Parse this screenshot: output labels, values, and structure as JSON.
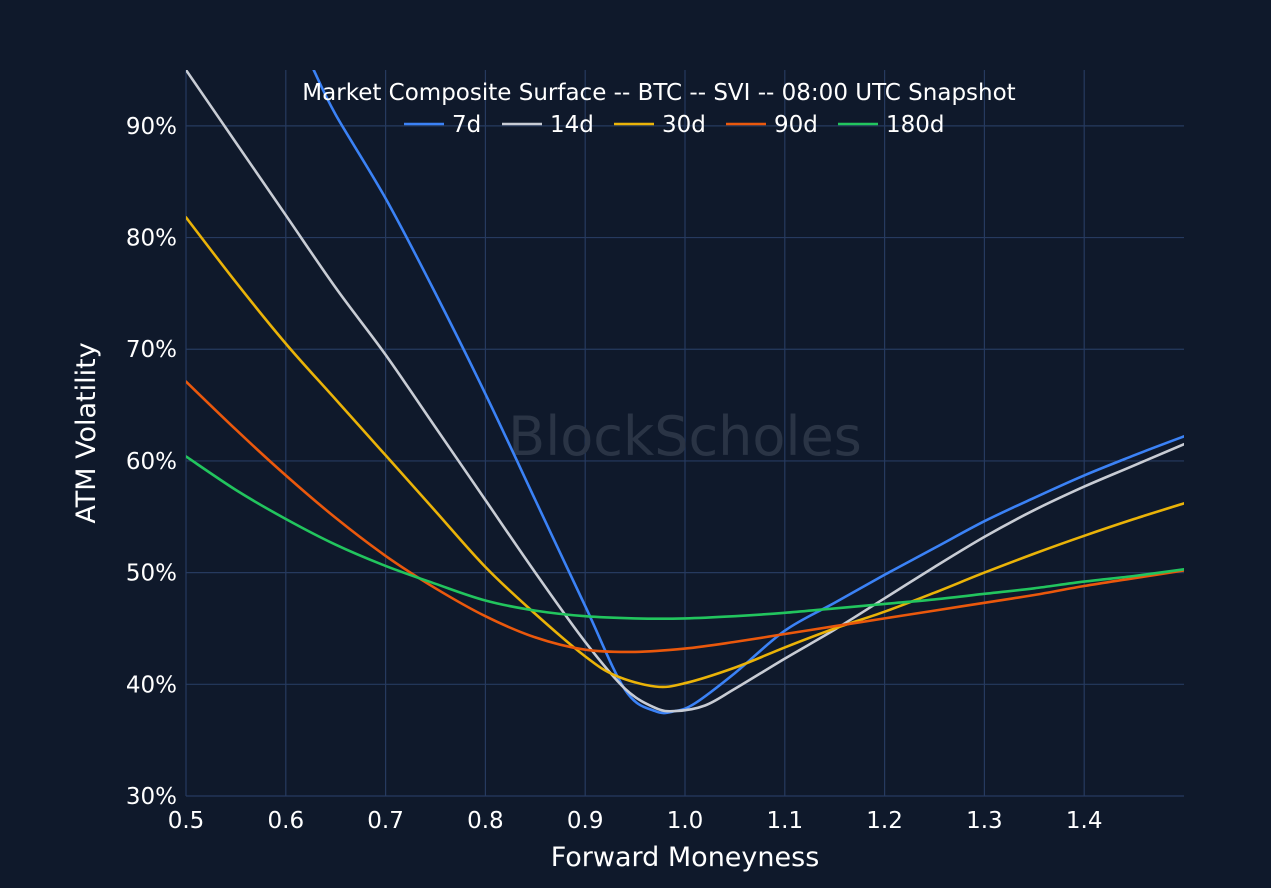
{
  "chart_data": {
    "type": "line",
    "title": "Market Composite Surface -- BTC -- SVI -- 08:00 UTC Snapshot",
    "xlabel": "Forward Moneyness",
    "ylabel": "ATM Volatility",
    "xlim": [
      0.5,
      1.5
    ],
    "ylim": [
      30,
      95
    ],
    "x_ticks": [
      0.5,
      0.6,
      0.7,
      0.8,
      0.9,
      1.0,
      1.1,
      1.2,
      1.3,
      1.4
    ],
    "x_tick_labels": [
      "0.5",
      "0.6",
      "0.7",
      "0.8",
      "0.9",
      "1.0",
      "1.1",
      "1.2",
      "1.3",
      "1.4"
    ],
    "y_ticks": [
      30,
      40,
      50,
      60,
      70,
      80,
      90
    ],
    "y_tick_labels": [
      "30%",
      "40%",
      "50%",
      "60%",
      "70%",
      "80%",
      "90%"
    ],
    "grid": true,
    "legend_position": "top-center",
    "watermark": "BlockScholes",
    "series": [
      {
        "name": "7d",
        "color": "#3b82f6",
        "points": [
          [
            0.628,
            95.0
          ],
          [
            0.65,
            91.0
          ],
          [
            0.7,
            83.5
          ],
          [
            0.75,
            75.0
          ],
          [
            0.8,
            66.0
          ],
          [
            0.85,
            56.5
          ],
          [
            0.9,
            47.0
          ],
          [
            0.94,
            39.5
          ],
          [
            0.97,
            37.6
          ],
          [
            0.99,
            37.6
          ],
          [
            1.01,
            38.3
          ],
          [
            1.05,
            41.0
          ],
          [
            1.1,
            44.8
          ],
          [
            1.15,
            47.3
          ],
          [
            1.2,
            49.8
          ],
          [
            1.25,
            52.2
          ],
          [
            1.3,
            54.6
          ],
          [
            1.35,
            56.7
          ],
          [
            1.4,
            58.7
          ],
          [
            1.45,
            60.5
          ],
          [
            1.5,
            62.2
          ]
        ]
      },
      {
        "name": "14d",
        "color": "#c8ccd4",
        "points": [
          [
            0.5,
            95.0
          ],
          [
            0.55,
            88.5
          ],
          [
            0.6,
            82.0
          ],
          [
            0.65,
            75.5
          ],
          [
            0.7,
            69.5
          ],
          [
            0.75,
            63.0
          ],
          [
            0.8,
            56.5
          ],
          [
            0.85,
            50.0
          ],
          [
            0.9,
            43.8
          ],
          [
            0.94,
            39.6
          ],
          [
            0.97,
            37.9
          ],
          [
            0.99,
            37.6
          ],
          [
            1.02,
            38.1
          ],
          [
            1.05,
            39.6
          ],
          [
            1.1,
            42.3
          ],
          [
            1.15,
            44.9
          ],
          [
            1.2,
            47.7
          ],
          [
            1.25,
            50.5
          ],
          [
            1.3,
            53.2
          ],
          [
            1.35,
            55.6
          ],
          [
            1.4,
            57.7
          ],
          [
            1.45,
            59.6
          ],
          [
            1.5,
            61.5
          ]
        ]
      },
      {
        "name": "30d",
        "color": "#eab308",
        "points": [
          [
            0.5,
            81.8
          ],
          [
            0.55,
            76.0
          ],
          [
            0.6,
            70.5
          ],
          [
            0.65,
            65.5
          ],
          [
            0.7,
            60.5
          ],
          [
            0.75,
            55.5
          ],
          [
            0.8,
            50.5
          ],
          [
            0.85,
            46.3
          ],
          [
            0.9,
            42.5
          ],
          [
            0.93,
            40.8
          ],
          [
            0.97,
            39.8
          ],
          [
            1.0,
            40.1
          ],
          [
            1.05,
            41.5
          ],
          [
            1.1,
            43.3
          ],
          [
            1.15,
            45.0
          ],
          [
            1.2,
            46.5
          ],
          [
            1.25,
            48.2
          ],
          [
            1.3,
            50.0
          ],
          [
            1.35,
            51.7
          ],
          [
            1.4,
            53.3
          ],
          [
            1.45,
            54.8
          ],
          [
            1.5,
            56.2
          ]
        ]
      },
      {
        "name": "90d",
        "color": "#ea580c",
        "points": [
          [
            0.5,
            67.1
          ],
          [
            0.55,
            62.8
          ],
          [
            0.6,
            58.7
          ],
          [
            0.65,
            54.9
          ],
          [
            0.7,
            51.5
          ],
          [
            0.75,
            48.6
          ],
          [
            0.8,
            46.1
          ],
          [
            0.85,
            44.2
          ],
          [
            0.9,
            43.1
          ],
          [
            0.95,
            42.9
          ],
          [
            1.0,
            43.2
          ],
          [
            1.05,
            43.8
          ],
          [
            1.1,
            44.5
          ],
          [
            1.15,
            45.2
          ],
          [
            1.2,
            45.9
          ],
          [
            1.25,
            46.6
          ],
          [
            1.3,
            47.3
          ],
          [
            1.35,
            48.0
          ],
          [
            1.4,
            48.8
          ],
          [
            1.45,
            49.5
          ],
          [
            1.5,
            50.2
          ]
        ]
      },
      {
        "name": "180d",
        "color": "#22c55e",
        "points": [
          [
            0.5,
            60.4
          ],
          [
            0.55,
            57.4
          ],
          [
            0.6,
            54.8
          ],
          [
            0.65,
            52.5
          ],
          [
            0.7,
            50.6
          ],
          [
            0.75,
            49.0
          ],
          [
            0.8,
            47.5
          ],
          [
            0.85,
            46.6
          ],
          [
            0.9,
            46.1
          ],
          [
            0.95,
            45.9
          ],
          [
            1.0,
            45.9
          ],
          [
            1.05,
            46.1
          ],
          [
            1.1,
            46.4
          ],
          [
            1.15,
            46.8
          ],
          [
            1.2,
            47.2
          ],
          [
            1.25,
            47.6
          ],
          [
            1.3,
            48.1
          ],
          [
            1.35,
            48.6
          ],
          [
            1.4,
            49.2
          ],
          [
            1.45,
            49.7
          ],
          [
            1.5,
            50.3
          ]
        ]
      }
    ]
  }
}
